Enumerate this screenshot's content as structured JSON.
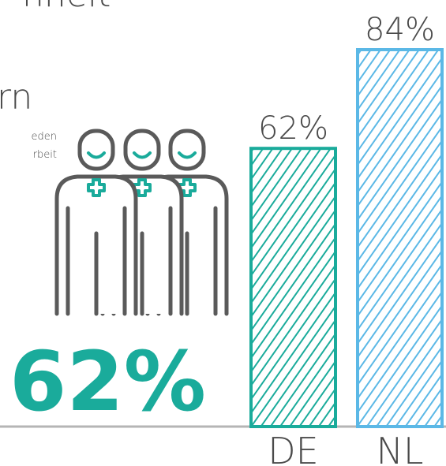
{
  "chart_data": {
    "type": "bar",
    "title": "nheit",
    "subtitle": "rn",
    "description": [
      "eden",
      "rbeit"
    ],
    "highlight": "62%",
    "highlight_color": "#1aab9b",
    "categories": [
      "DE",
      "NL"
    ],
    "values": [
      62,
      84
    ],
    "value_labels": [
      "62%",
      "84%"
    ],
    "colors": [
      "#1aab9b",
      "#5bb8e6"
    ],
    "hatch": true
  }
}
